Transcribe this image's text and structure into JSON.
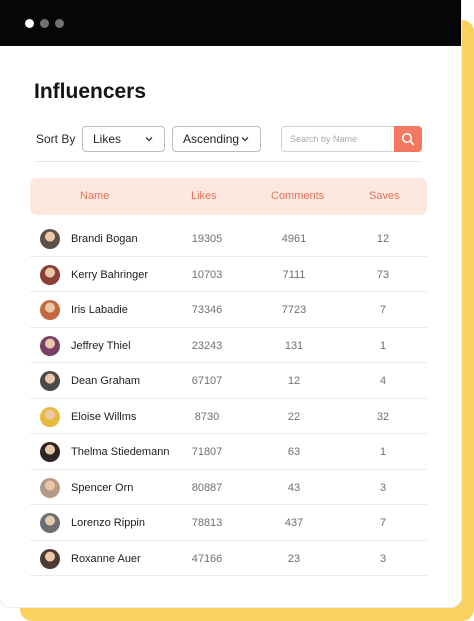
{
  "window": {
    "controls": [
      "close",
      "minimize",
      "maximize"
    ]
  },
  "page": {
    "title": "Influencers"
  },
  "toolbar": {
    "sort_label": "Sort By",
    "sort_field": "Likes",
    "sort_order": "Ascending",
    "search_placeholder": "Search by Name",
    "search_icon": "search-icon"
  },
  "colors": {
    "accent": "#f2795f",
    "header_bg": "#fde8df",
    "header_text": "#e8705a",
    "card_shadow": "#f9d25f"
  },
  "table": {
    "columns": [
      "Name",
      "Likes",
      "Comments",
      "Saves"
    ],
    "rows": [
      {
        "name": "Brandi Bogan",
        "likes": "19305",
        "comments": "4961",
        "saves": "12",
        "avatar_color": "#5e5047"
      },
      {
        "name": "Kerry Bahringer",
        "likes": "10703",
        "comments": "7111",
        "saves": "73",
        "avatar_color": "#8a3e36"
      },
      {
        "name": "Iris Labadie",
        "likes": "73346",
        "comments": "7723",
        "saves": "7",
        "avatar_color": "#c4693f"
      },
      {
        "name": "Jeffrey Thiel",
        "likes": "23243",
        "comments": "131",
        "saves": "1",
        "avatar_color": "#7a3f66"
      },
      {
        "name": "Dean Graham",
        "likes": "67107",
        "comments": "12",
        "saves": "4",
        "avatar_color": "#4a4a4a"
      },
      {
        "name": "Eloise Willms",
        "likes": "8730",
        "comments": "22",
        "saves": "32",
        "avatar_color": "#e8b93a"
      },
      {
        "name": "Thelma Stiedemann",
        "likes": "71807",
        "comments": "63",
        "saves": "1",
        "avatar_color": "#2e2522"
      },
      {
        "name": "Spencer Orn",
        "likes": "80887",
        "comments": "43",
        "saves": "3",
        "avatar_color": "#b59a88"
      },
      {
        "name": "Lorenzo Rippin",
        "likes": "78813",
        "comments": "437",
        "saves": "7",
        "avatar_color": "#6b6f74"
      },
      {
        "name": "Roxanne Auer",
        "likes": "47166",
        "comments": "23",
        "saves": "3",
        "avatar_color": "#4d3a33"
      }
    ]
  }
}
